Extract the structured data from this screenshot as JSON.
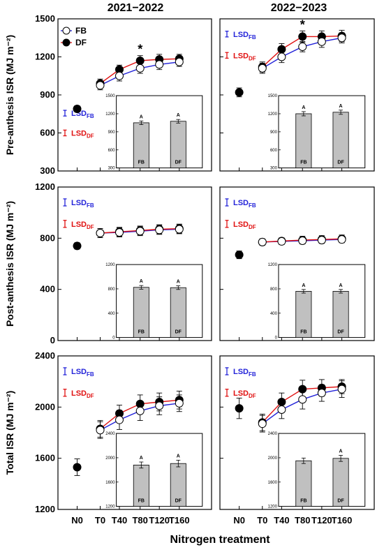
{
  "figure": {
    "column_titles": [
      "2021−2022",
      "2022−2023"
    ],
    "x_axis_title": "Nitrogen treatment",
    "legend": {
      "fb_label": "FB",
      "df_label": "DF"
    },
    "lsd": {
      "prefix": "LSD",
      "fb_sub": "FB",
      "df_sub": "DF"
    },
    "colors": {
      "fb_line": "#2323d9",
      "df_line": "#e01010",
      "bar": "#c0c0c0",
      "axis": "#000000"
    },
    "marker_styles": {
      "FB": "open-circle",
      "DF": "filled-circle"
    }
  },
  "chart_data": [
    {
      "type": "line",
      "panel": "pre-2021",
      "column_title": "2021−2022",
      "ylabel": "Pre-anthesis ISR (MJ m⁻²)",
      "ylim": [
        300,
        1500
      ],
      "yticks": [
        300,
        600,
        900,
        1200,
        1500
      ],
      "categories": [
        "N0",
        "T0",
        "T40",
        "T80",
        "T120",
        "T160"
      ],
      "control": {
        "category": "N0",
        "value": 790,
        "err": 25
      },
      "series": [
        {
          "name": "FB",
          "values": [
            null,
            975,
            1050,
            1110,
            1140,
            1160
          ],
          "err": [
            null,
            35,
            40,
            40,
            40,
            35
          ]
        },
        {
          "name": "DF",
          "values": [
            null,
            990,
            1100,
            1170,
            1180,
            1185
          ],
          "err": [
            null,
            35,
            35,
            40,
            40,
            35
          ]
        }
      ],
      "lsd": {
        "FB": 45,
        "DF": 45
      },
      "show_legend": true,
      "star_at": "T80",
      "inset": {
        "type": "bar",
        "categories": [
          "FB",
          "DF"
        ],
        "values": [
          1050,
          1075
        ],
        "err": [
          30,
          30
        ],
        "letters": [
          "A",
          "A"
        ],
        "ylim": [
          300,
          1500
        ],
        "yticks": [
          300,
          600,
          900,
          1200,
          1500
        ]
      }
    },
    {
      "type": "line",
      "panel": "pre-2022",
      "column_title": "2022−2023",
      "ylim": [
        300,
        1500
      ],
      "yticks": [
        300,
        600,
        900,
        1200,
        1500
      ],
      "categories": [
        "N0",
        "T0",
        "T40",
        "T80",
        "T120",
        "T160"
      ],
      "control": {
        "category": "N0",
        "value": 920,
        "err": 35
      },
      "series": [
        {
          "name": "FB",
          "values": [
            null,
            1110,
            1200,
            1280,
            1320,
            1350
          ],
          "err": [
            null,
            40,
            45,
            40,
            45,
            40
          ]
        },
        {
          "name": "DF",
          "values": [
            null,
            1120,
            1260,
            1360,
            1360,
            1365
          ],
          "err": [
            null,
            40,
            45,
            45,
            45,
            45
          ]
        }
      ],
      "lsd": {
        "FB": 45,
        "DF": 45
      },
      "show_legend": false,
      "star_at": "T80",
      "inset": {
        "type": "bar",
        "categories": [
          "FB",
          "DF"
        ],
        "values": [
          1200,
          1225
        ],
        "err": [
          35,
          35
        ],
        "letters": [
          "A",
          "A"
        ],
        "ylim": [
          300,
          1500
        ],
        "yticks": [
          300,
          600,
          900,
          1200,
          1500
        ]
      }
    },
    {
      "type": "line",
      "panel": "post-2021",
      "ylabel": "Post-anthesis ISR (MJ m⁻²)",
      "ylim": [
        0,
        1200
      ],
      "yticks": [
        0,
        400,
        800,
        1200
      ],
      "categories": [
        "N0",
        "T0",
        "T40",
        "T80",
        "T120",
        "T160"
      ],
      "control": {
        "category": "N0",
        "value": 740,
        "err": 25
      },
      "series": [
        {
          "name": "FB",
          "values": [
            null,
            840,
            845,
            855,
            865,
            870
          ],
          "err": [
            null,
            35,
            35,
            35,
            35,
            35
          ]
        },
        {
          "name": "DF",
          "values": [
            null,
            840,
            850,
            860,
            870,
            875
          ],
          "err": [
            null,
            35,
            35,
            35,
            35,
            35
          ]
        }
      ],
      "lsd": {
        "FB": 55,
        "DF": 55
      },
      "show_legend": false,
      "star_at": null,
      "inset": {
        "type": "bar",
        "categories": [
          "FB",
          "DF"
        ],
        "values": [
          825,
          820
        ],
        "err": [
          30,
          30
        ],
        "letters": [
          "A",
          "A"
        ],
        "ylim": [
          0,
          1200
        ],
        "yticks": [
          0,
          400,
          800,
          1200
        ]
      }
    },
    {
      "type": "line",
      "panel": "post-2022",
      "ylim": [
        0,
        1200
      ],
      "yticks": [
        0,
        400,
        800,
        1200
      ],
      "categories": [
        "N0",
        "T0",
        "T40",
        "T80",
        "T120",
        "T160"
      ],
      "control": {
        "category": "N0",
        "value": 670,
        "err": 30
      },
      "series": [
        {
          "name": "FB",
          "values": [
            null,
            770,
            775,
            780,
            785,
            790
          ],
          "err": [
            null,
            25,
            25,
            25,
            25,
            25
          ]
        },
        {
          "name": "DF",
          "values": [
            null,
            770,
            778,
            785,
            790,
            795
          ],
          "err": [
            null,
            25,
            25,
            30,
            30,
            30
          ]
        }
      ],
      "lsd": {
        "FB": 55,
        "DF": 55
      },
      "show_legend": false,
      "star_at": null,
      "inset": {
        "type": "bar",
        "categories": [
          "FB",
          "DF"
        ],
        "values": [
          760,
          760
        ],
        "err": [
          30,
          30
        ],
        "letters": [
          "A",
          "A"
        ],
        "ylim": [
          0,
          1200
        ],
        "yticks": [
          0,
          400,
          800,
          1200
        ]
      }
    },
    {
      "type": "line",
      "panel": "total-2021",
      "ylabel": "Total ISR (MJ m⁻²)",
      "ylim": [
        1200,
        2400
      ],
      "yticks": [
        1200,
        1600,
        2000,
        2400
      ],
      "categories": [
        "N0",
        "T0",
        "T40",
        "T80",
        "T120",
        "T160"
      ],
      "control": {
        "category": "N0",
        "value": 1530,
        "err": 65
      },
      "series": [
        {
          "name": "FB",
          "values": [
            null,
            1820,
            1900,
            1970,
            2010,
            2030
          ],
          "err": [
            null,
            65,
            75,
            75,
            70,
            65
          ]
        },
        {
          "name": "DF",
          "values": [
            null,
            1830,
            1950,
            2025,
            2040,
            2055
          ],
          "err": [
            null,
            65,
            65,
            70,
            70,
            70
          ]
        }
      ],
      "lsd": {
        "FB": 55,
        "DF": 55
      },
      "show_legend": false,
      "star_at": null,
      "inset": {
        "type": "bar",
        "categories": [
          "FB",
          "DF"
        ],
        "values": [
          1880,
          1905
        ],
        "err": [
          50,
          55
        ],
        "letters": [
          "A",
          "A"
        ],
        "ylim": [
          1200,
          2400
        ],
        "yticks": [
          1200,
          1600,
          2000,
          2400
        ]
      }
    },
    {
      "type": "line",
      "panel": "total-2022",
      "ylim": [
        1200,
        2400
      ],
      "yticks": [
        1200,
        1600,
        2000,
        2400
      ],
      "categories": [
        "N0",
        "T0",
        "T40",
        "T80",
        "T120",
        "T160"
      ],
      "control": {
        "category": "N0",
        "value": 1990,
        "err": 80
      },
      "series": [
        {
          "name": "FB",
          "values": [
            null,
            1870,
            1980,
            2060,
            2110,
            2140
          ],
          "err": [
            null,
            65,
            70,
            75,
            65,
            65
          ]
        },
        {
          "name": "DF",
          "values": [
            null,
            1880,
            2040,
            2140,
            2150,
            2160
          ],
          "err": [
            null,
            65,
            70,
            70,
            65,
            55
          ]
        }
      ],
      "lsd": {
        "FB": 55,
        "DF": 55
      },
      "show_legend": false,
      "star_at": null,
      "inset": {
        "type": "bar",
        "categories": [
          "FB",
          "DF"
        ],
        "values": [
          1950,
          1990
        ],
        "err": [
          45,
          50
        ],
        "letters": [
          "",
          "A"
        ],
        "ylim": [
          1200,
          2400
        ],
        "yticks": [
          1200,
          1600,
          2000,
          2400
        ]
      }
    }
  ]
}
